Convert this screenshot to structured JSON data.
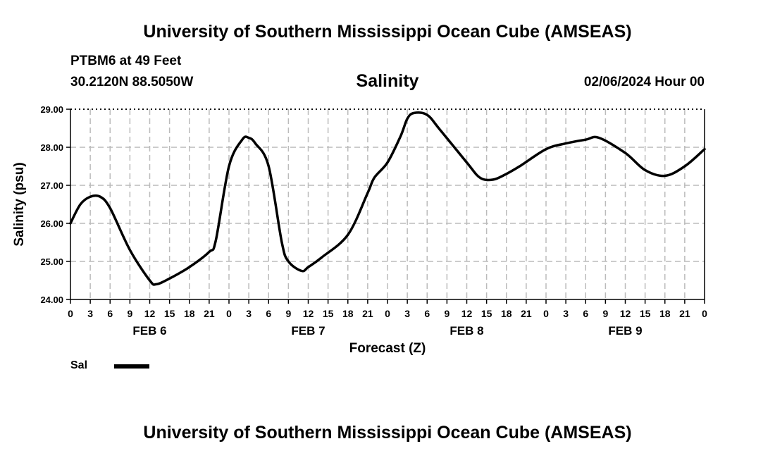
{
  "header": {
    "title": "University of Southern Mississippi Ocean Cube (AMSEAS)",
    "station": "PTBM6 at 49 Feet",
    "coordinates": "30.2120N  88.5050W",
    "chart_title": "Salinity",
    "datetime": "02/06/2024 Hour 00"
  },
  "footer": {
    "title": "University of Southern Mississippi Ocean Cube (AMSEAS)"
  },
  "legend": {
    "label": "Sal",
    "color": "#000000"
  },
  "chart_data": {
    "type": "line",
    "title": "Salinity",
    "xlabel": "Forecast (Z)",
    "ylabel": "Salinity (psu)",
    "xlim": [
      0,
      96
    ],
    "ylim": [
      24,
      29
    ],
    "yticks": [
      "24.00",
      "25.00",
      "26.00",
      "27.00",
      "28.00",
      "29.00"
    ],
    "xtick_labels": [
      "0",
      "3",
      "6",
      "9",
      "12",
      "15",
      "18",
      "21",
      "0",
      "3",
      "6",
      "9",
      "12",
      "15",
      "18",
      "21",
      "0",
      "3",
      "6",
      "9",
      "12",
      "15",
      "18",
      "21",
      "0",
      "3",
      "6",
      "9",
      "12",
      "15",
      "18",
      "21",
      "0"
    ],
    "day_labels": [
      "FEB 6",
      "FEB 7",
      "FEB 8",
      "FEB 9"
    ],
    "grid": true,
    "series": [
      {
        "name": "Sal",
        "x": [
          0,
          1.5,
          3,
          4.5,
          6,
          9,
          12,
          13,
          15,
          18,
          21,
          22,
          24,
          26,
          27,
          28,
          30,
          32,
          33,
          35,
          36,
          38,
          42,
          45,
          46,
          48,
          50,
          51,
          52,
          54,
          56,
          60,
          62,
          64,
          66,
          68,
          72,
          75,
          78,
          80,
          84,
          87,
          90,
          93,
          96
        ],
        "values": [
          26.0,
          26.5,
          26.7,
          26.7,
          26.4,
          25.3,
          24.5,
          24.4,
          24.55,
          24.85,
          25.25,
          25.55,
          27.5,
          28.2,
          28.25,
          28.1,
          27.5,
          25.5,
          25.0,
          24.75,
          24.85,
          25.1,
          25.7,
          26.8,
          27.2,
          27.6,
          28.3,
          28.75,
          28.9,
          28.85,
          28.45,
          27.6,
          27.2,
          27.15,
          27.3,
          27.5,
          27.95,
          28.1,
          28.2,
          28.25,
          27.85,
          27.4,
          27.25,
          27.5,
          27.95
        ]
      }
    ]
  }
}
